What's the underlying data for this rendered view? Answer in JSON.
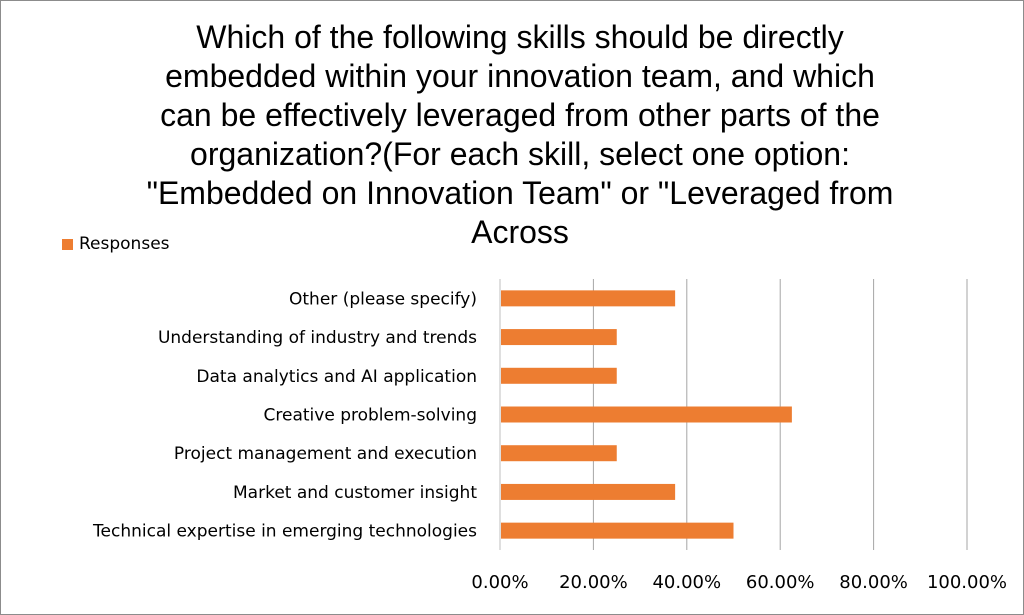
{
  "chart_data": {
    "type": "bar",
    "orientation": "horizontal",
    "title": "Which of the following skills should be directly\nembedded within your innovation team, and which\ncan be effectively leveraged from other parts of the\norganization?(For each skill, select one option:\n\"Embedded on Innovation Team\" or \"Leveraged from\nAcross",
    "categories": [
      "Other (please specify)",
      "Understanding of industry and trends",
      "Data analytics and AI application",
      "Creative problem-solving",
      "Project management and execution",
      "Market and customer insight",
      "Technical expertise in emerging technologies"
    ],
    "series": [
      {
        "name": "Responses",
        "values": [
          37.5,
          25.0,
          25.0,
          62.5,
          25.0,
          37.5,
          50.0
        ],
        "color": "#ed7d31"
      }
    ],
    "xlim": [
      0,
      100
    ],
    "xticks": [
      "0.00%",
      "20.00%",
      "40.00%",
      "60.00%",
      "80.00%",
      "100.00%"
    ],
    "grid": true,
    "legend_position": "top-left"
  }
}
